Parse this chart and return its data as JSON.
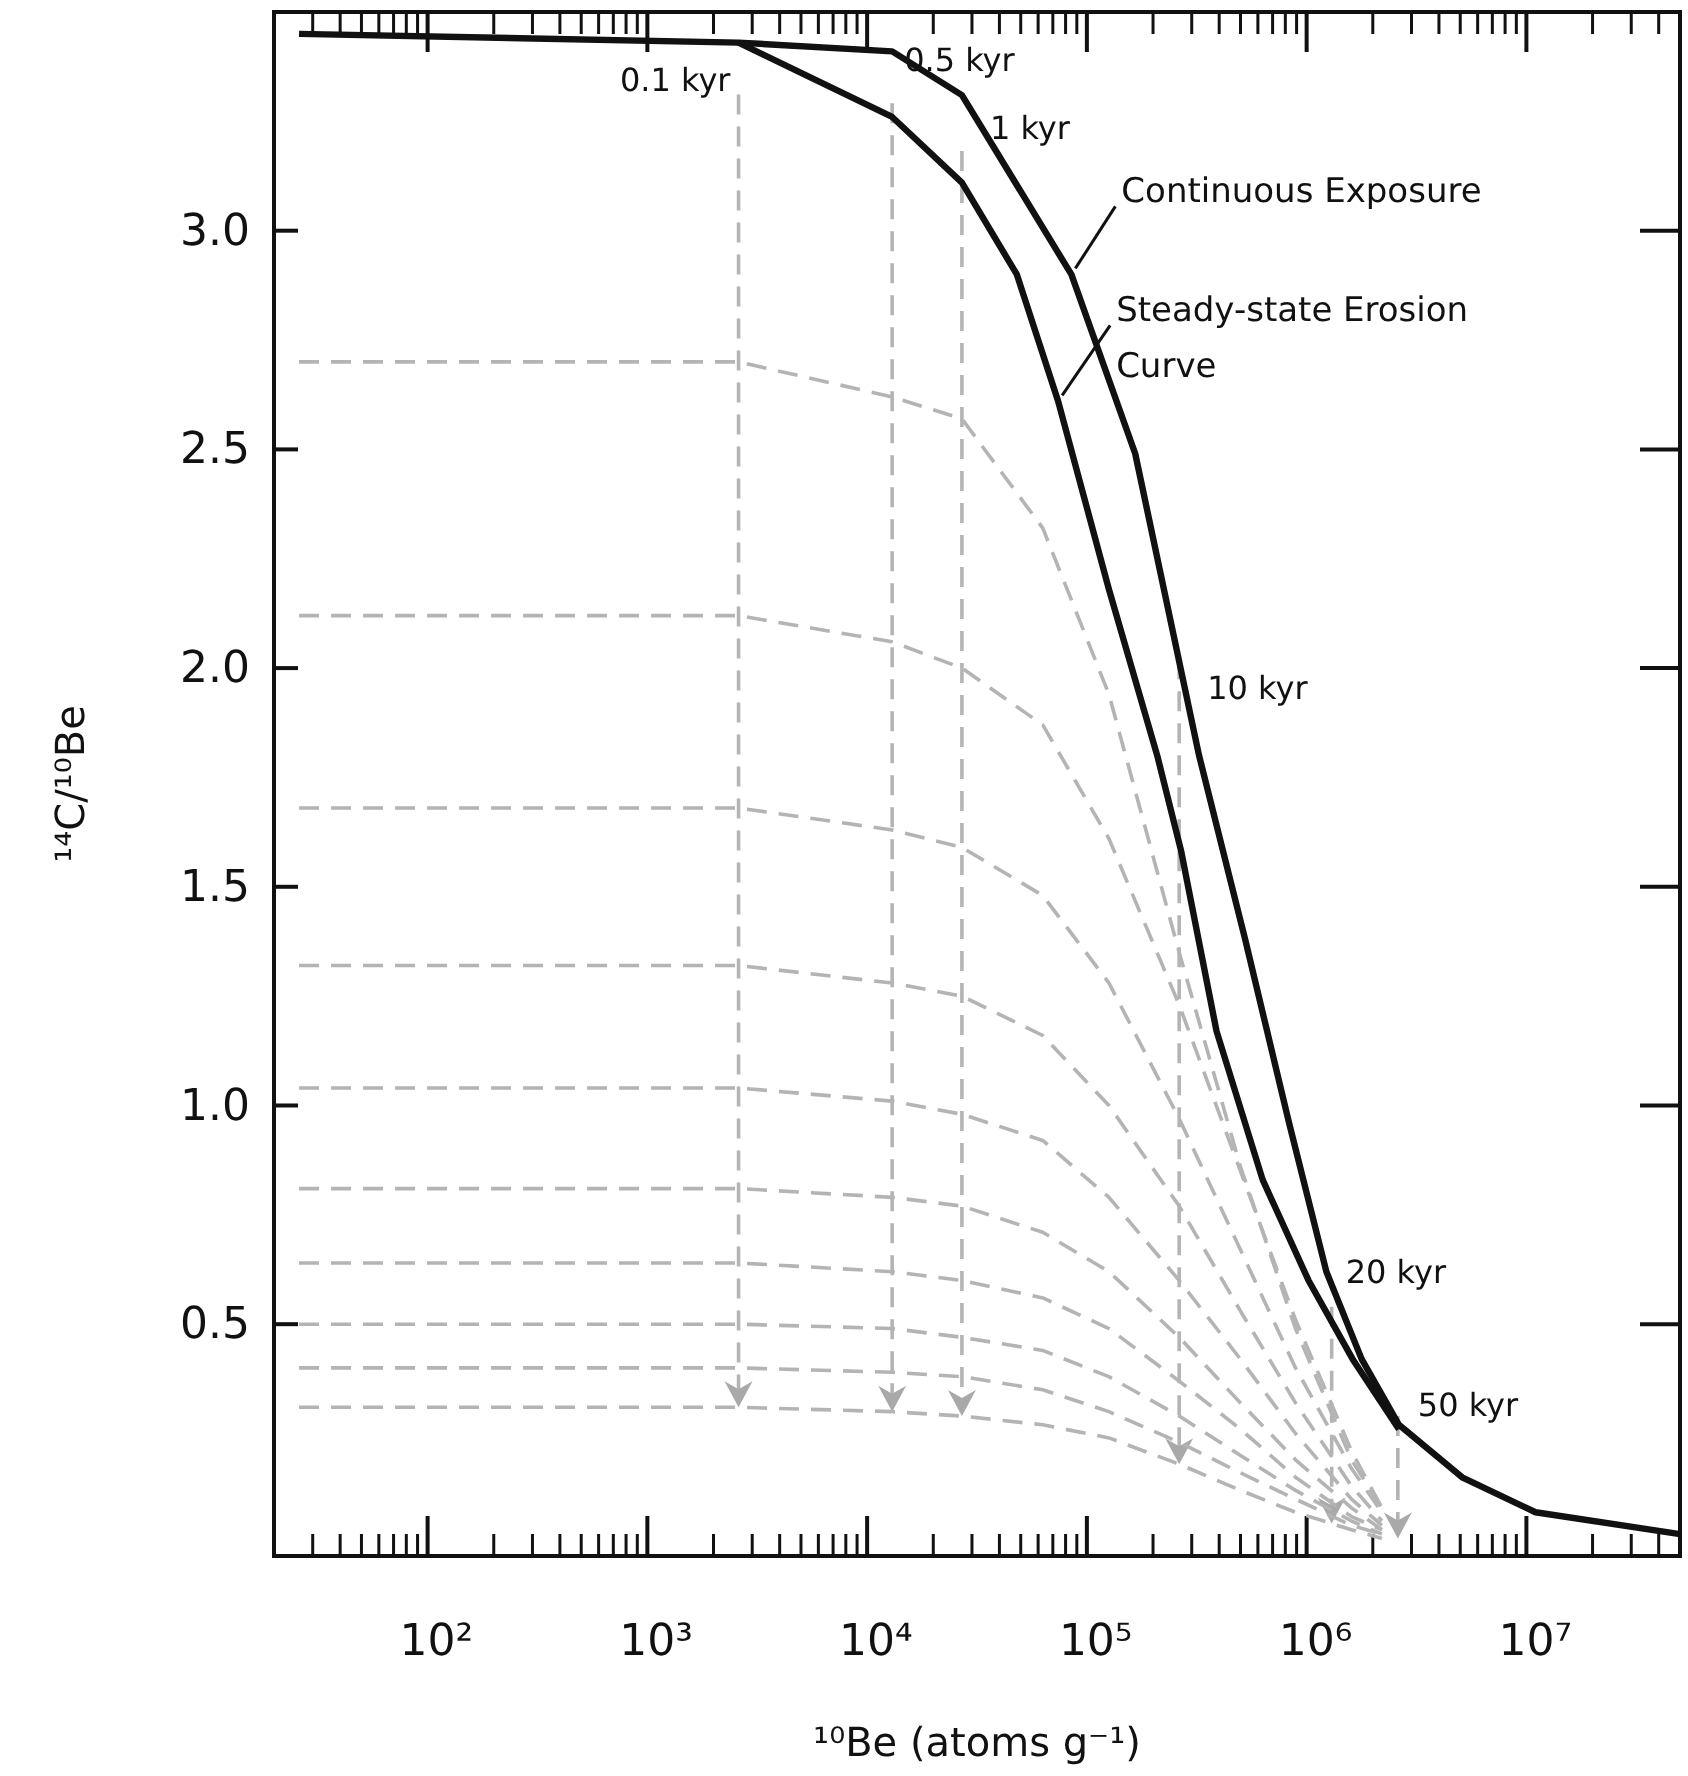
{
  "chart_data": {
    "type": "line",
    "xlabel": "¹⁰Be (atoms g⁻¹)",
    "ylabel": "¹⁴C/¹⁰Be",
    "log": "x",
    "xlim": [
      20,
      50000000
    ],
    "xticks": [
      {
        "value": 20,
        "label": null
      },
      {
        "value": 30,
        "label": null
      },
      {
        "value": 40,
        "label": null
      },
      {
        "value": 50,
        "label": null
      },
      {
        "value": 60,
        "label": null
      },
      {
        "value": 70,
        "label": null
      },
      {
        "value": 80,
        "label": null
      },
      {
        "value": 90,
        "label": null
      },
      {
        "value": 100,
        "label": "10²"
      },
      {
        "value": 200,
        "label": null
      },
      {
        "value": 300,
        "label": null
      },
      {
        "value": 400,
        "label": null
      },
      {
        "value": 500,
        "label": null
      },
      {
        "value": 600,
        "label": null
      },
      {
        "value": 700,
        "label": null
      },
      {
        "value": 800,
        "label": null
      },
      {
        "value": 900,
        "label": null
      },
      {
        "value": 1000,
        "label": "10³"
      },
      {
        "value": 2000,
        "label": null
      },
      {
        "value": 3000,
        "label": null
      },
      {
        "value": 4000,
        "label": null
      },
      {
        "value": 5000,
        "label": null
      },
      {
        "value": 6000,
        "label": null
      },
      {
        "value": 7000,
        "label": null
      },
      {
        "value": 8000,
        "label": null
      },
      {
        "value": 9000,
        "label": null
      },
      {
        "value": 10000,
        "label": "10⁴"
      },
      {
        "value": 20000,
        "label": null
      },
      {
        "value": 30000,
        "label": null
      },
      {
        "value": 40000,
        "label": null
      },
      {
        "value": 50000,
        "label": null
      },
      {
        "value": 60000,
        "label": null
      },
      {
        "value": 70000,
        "label": null
      },
      {
        "value": 80000,
        "label": null
      },
      {
        "value": 90000,
        "label": null
      },
      {
        "value": 100000,
        "label": "10⁵"
      },
      {
        "value": 200000,
        "label": null
      },
      {
        "value": 300000,
        "label": null
      },
      {
        "value": 400000,
        "label": null
      },
      {
        "value": 500000,
        "label": null
      },
      {
        "value": 600000,
        "label": null
      },
      {
        "value": 700000,
        "label": null
      },
      {
        "value": 800000,
        "label": null
      },
      {
        "value": 900000,
        "label": null
      },
      {
        "value": 1000000,
        "label": "10⁶"
      },
      {
        "value": 2000000,
        "label": null
      },
      {
        "value": 3000000,
        "label": null
      },
      {
        "value": 4000000,
        "label": null
      },
      {
        "value": 5000000,
        "label": null
      },
      {
        "value": 6000000,
        "label": null
      },
      {
        "value": 7000000,
        "label": null
      },
      {
        "value": 8000000,
        "label": null
      },
      {
        "value": 9000000,
        "label": null
      },
      {
        "value": 10000000,
        "label": "10⁷"
      },
      {
        "value": 20000000,
        "label": null
      },
      {
        "value": 30000000,
        "label": null
      },
      {
        "value": 40000000,
        "label": null
      },
      {
        "value": 50000000,
        "label": null
      }
    ],
    "ylim": [
      -0.03,
      3.5
    ],
    "yticks": [
      0.5,
      {
        "value": 1,
        "label": "1.0"
      },
      1.5,
      {
        "value": 2,
        "label": "2.0"
      },
      2.5,
      {
        "value": 3,
        "label": "3.0"
      }
    ],
    "series": [
      {
        "name": "Continuous Exposure",
        "color": "#111111",
        "line_style": "solid",
        "x": [
          26,
          2600,
          13000,
          27000,
          85000,
          166000,
          324000,
          525000,
          832000,
          1230000,
          1780000,
          2630000,
          5100000,
          11000000,
          50000000
        ],
        "values": [
          3.45,
          3.43,
          3.41,
          3.31,
          2.9,
          2.49,
          1.8,
          1.38,
          0.96,
          0.62,
          0.42,
          0.27,
          0.15,
          0.07,
          0.02
        ]
      },
      {
        "name": "Steady-state Erosion Curve",
        "color": "#111111",
        "line_style": "solid",
        "x": [
          2600,
          13000,
          27000,
          48000,
          74000,
          126000,
          209000,
          269000,
          389000,
          631000,
          1020000,
          1620000,
          2630000
        ],
        "values": [
          3.43,
          3.26,
          3.11,
          2.9,
          2.61,
          2.18,
          1.8,
          1.58,
          1.17,
          0.83,
          0.6,
          0.42,
          0.26
        ]
      },
      {
        "color": "#b4b4b4",
        "line_style": "dashed",
        "x": [
          26,
          1000,
          2600,
          13000,
          27000,
          63000,
          126000,
          263000,
          500000,
          890000,
          1600000,
          2200000
        ],
        "values": [
          2.7,
          2.7,
          2.7,
          2.62,
          2.57,
          2.32,
          1.94,
          1.35,
          0.86,
          0.49,
          0.19,
          0.08
        ]
      },
      {
        "color": "#b4b4b4",
        "line_style": "dashed",
        "x": [
          26,
          1000,
          2600,
          13000,
          27000,
          63000,
          126000,
          263000,
          500000,
          890000,
          1600000,
          2200000
        ],
        "values": [
          2.12,
          2.12,
          2.12,
          2.06,
          2.0,
          1.87,
          1.61,
          1.23,
          0.85,
          0.51,
          0.21,
          0.08
        ]
      },
      {
        "color": "#b4b4b4",
        "line_style": "dashed",
        "x": [
          26,
          1000,
          2600,
          13000,
          27000,
          63000,
          126000,
          263000,
          500000,
          890000,
          1600000,
          2200000
        ],
        "values": [
          1.68,
          1.68,
          1.68,
          1.63,
          1.59,
          1.48,
          1.28,
          0.97,
          0.67,
          0.4,
          0.17,
          0.07
        ]
      },
      {
        "color": "#b4b4b4",
        "line_style": "dashed",
        "x": [
          26,
          1000,
          2600,
          13000,
          27000,
          63000,
          126000,
          263000,
          500000,
          890000,
          1600000,
          2200000
        ],
        "values": [
          1.32,
          1.32,
          1.32,
          1.28,
          1.25,
          1.16,
          1.0,
          0.77,
          0.53,
          0.32,
          0.13,
          0.05
        ]
      },
      {
        "color": "#b4b4b4",
        "line_style": "dashed",
        "x": [
          26,
          1000,
          2600,
          13000,
          27000,
          63000,
          126000,
          263000,
          500000,
          890000,
          1600000,
          2200000
        ],
        "values": [
          1.04,
          1.04,
          1.04,
          1.01,
          0.98,
          0.92,
          0.79,
          0.6,
          0.42,
          0.25,
          0.1,
          0.04
        ]
      },
      {
        "color": "#b4b4b4",
        "line_style": "dashed",
        "x": [
          26,
          1000,
          2600,
          13000,
          27000,
          63000,
          126000,
          263000,
          500000,
          890000,
          1600000,
          2200000
        ],
        "values": [
          0.81,
          0.81,
          0.81,
          0.79,
          0.77,
          0.71,
          0.62,
          0.47,
          0.32,
          0.19,
          0.08,
          0.03
        ]
      },
      {
        "color": "#b4b4b4",
        "line_style": "dashed",
        "x": [
          26,
          1000,
          2600,
          13000,
          27000,
          63000,
          126000,
          263000,
          500000,
          890000,
          1600000,
          2200000
        ],
        "values": [
          0.64,
          0.64,
          0.64,
          0.62,
          0.6,
          0.56,
          0.49,
          0.37,
          0.26,
          0.15,
          0.06,
          0.03
        ]
      },
      {
        "color": "#b4b4b4",
        "line_style": "dashed",
        "x": [
          26,
          1000,
          2600,
          13000,
          27000,
          63000,
          126000,
          263000,
          500000,
          890000,
          1600000,
          2200000
        ],
        "values": [
          0.5,
          0.5,
          0.5,
          0.49,
          0.47,
          0.44,
          0.38,
          0.29,
          0.2,
          0.12,
          0.05,
          0.02
        ]
      },
      {
        "color": "#b4b4b4",
        "line_style": "dashed",
        "x": [
          26,
          1000,
          2600,
          13000,
          27000,
          63000,
          126000,
          263000,
          500000,
          890000,
          1600000,
          2200000
        ],
        "values": [
          0.4,
          0.4,
          0.4,
          0.39,
          0.38,
          0.35,
          0.3,
          0.23,
          0.16,
          0.1,
          0.04,
          0.02
        ]
      },
      {
        "color": "#b4b4b4",
        "line_style": "dashed",
        "x": [
          26,
          1000,
          2600,
          13000,
          27000,
          63000,
          126000,
          263000,
          500000,
          890000,
          1600000,
          2200000
        ],
        "values": [
          0.31,
          0.31,
          0.31,
          0.3,
          0.29,
          0.27,
          0.24,
          0.18,
          0.12,
          0.07,
          0.03,
          0.01
        ]
      }
    ],
    "annotations": [
      {
        "text": "0.1 kyr",
        "x": 2600,
        "y": 3.43
      },
      {
        "text": "0.5 kyr",
        "x": 13000,
        "y": 3.41
      },
      {
        "text": "1 kyr",
        "x": 27000,
        "y": 3.31
      },
      {
        "text": "10 kyr",
        "x": 263000,
        "y": 2.02
      },
      {
        "text": "20 kyr",
        "x": 1300000,
        "y": 0.54
      },
      {
        "text": "50 kyr",
        "x": 2600000,
        "y": 0.29
      }
    ]
  }
}
